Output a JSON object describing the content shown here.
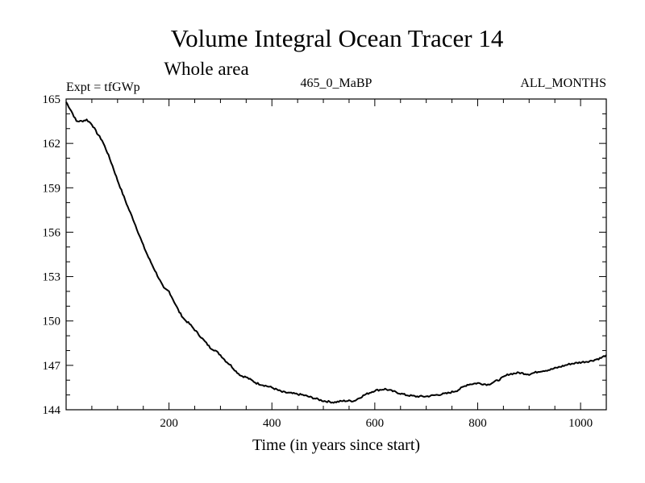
{
  "chart_data": {
    "type": "line",
    "title": "Volume Integral Ocean Tracer 14",
    "subtitle": "Whole area",
    "annotations": {
      "left": "Expt = tfGWp",
      "center": "465_0_MaBP",
      "right": "ALL_MONTHS"
    },
    "xlabel": "Time (in years since start)",
    "ylabel": "",
    "xlim": [
      0,
      1050
    ],
    "ylim": [
      144,
      165
    ],
    "xticks": [
      200,
      400,
      600,
      800,
      1000
    ],
    "yticks": [
      144,
      147,
      150,
      153,
      156,
      159,
      162,
      165
    ],
    "line_color": "#000000",
    "series": [
      {
        "name": "Tracer 14",
        "x": [
          0,
          10,
          20,
          30,
          40,
          50,
          60,
          70,
          80,
          90,
          100,
          110,
          120,
          130,
          140,
          150,
          160,
          170,
          180,
          190,
          200,
          210,
          220,
          230,
          240,
          250,
          260,
          270,
          280,
          290,
          300,
          310,
          320,
          330,
          340,
          350,
          360,
          370,
          380,
          390,
          400,
          420,
          440,
          460,
          480,
          500,
          520,
          540,
          560,
          580,
          600,
          620,
          640,
          660,
          680,
          700,
          720,
          740,
          760,
          780,
          800,
          820,
          840,
          860,
          880,
          900,
          920,
          940,
          960,
          980,
          1000,
          1020,
          1040,
          1050
        ],
        "values": [
          164.8,
          164.2,
          163.5,
          163.5,
          163.6,
          163.3,
          162.7,
          162.2,
          161.4,
          160.5,
          159.5,
          158.6,
          157.7,
          156.9,
          156.0,
          155.1,
          154.3,
          153.6,
          152.9,
          152.2,
          152.0,
          151.3,
          150.6,
          150.1,
          149.8,
          149.4,
          149.0,
          148.6,
          148.2,
          148.0,
          147.7,
          147.3,
          147.0,
          146.6,
          146.3,
          146.2,
          146.0,
          145.8,
          145.7,
          145.6,
          145.5,
          145.2,
          145.1,
          145.0,
          144.8,
          144.6,
          144.5,
          144.6,
          144.6,
          145.0,
          145.3,
          145.4,
          145.2,
          145.0,
          144.9,
          144.9,
          145.0,
          145.1,
          145.3,
          145.7,
          145.8,
          145.7,
          146.0,
          146.4,
          146.5,
          146.4,
          146.6,
          146.7,
          146.9,
          147.1,
          147.2,
          147.3,
          147.5,
          147.7
        ]
      }
    ]
  }
}
